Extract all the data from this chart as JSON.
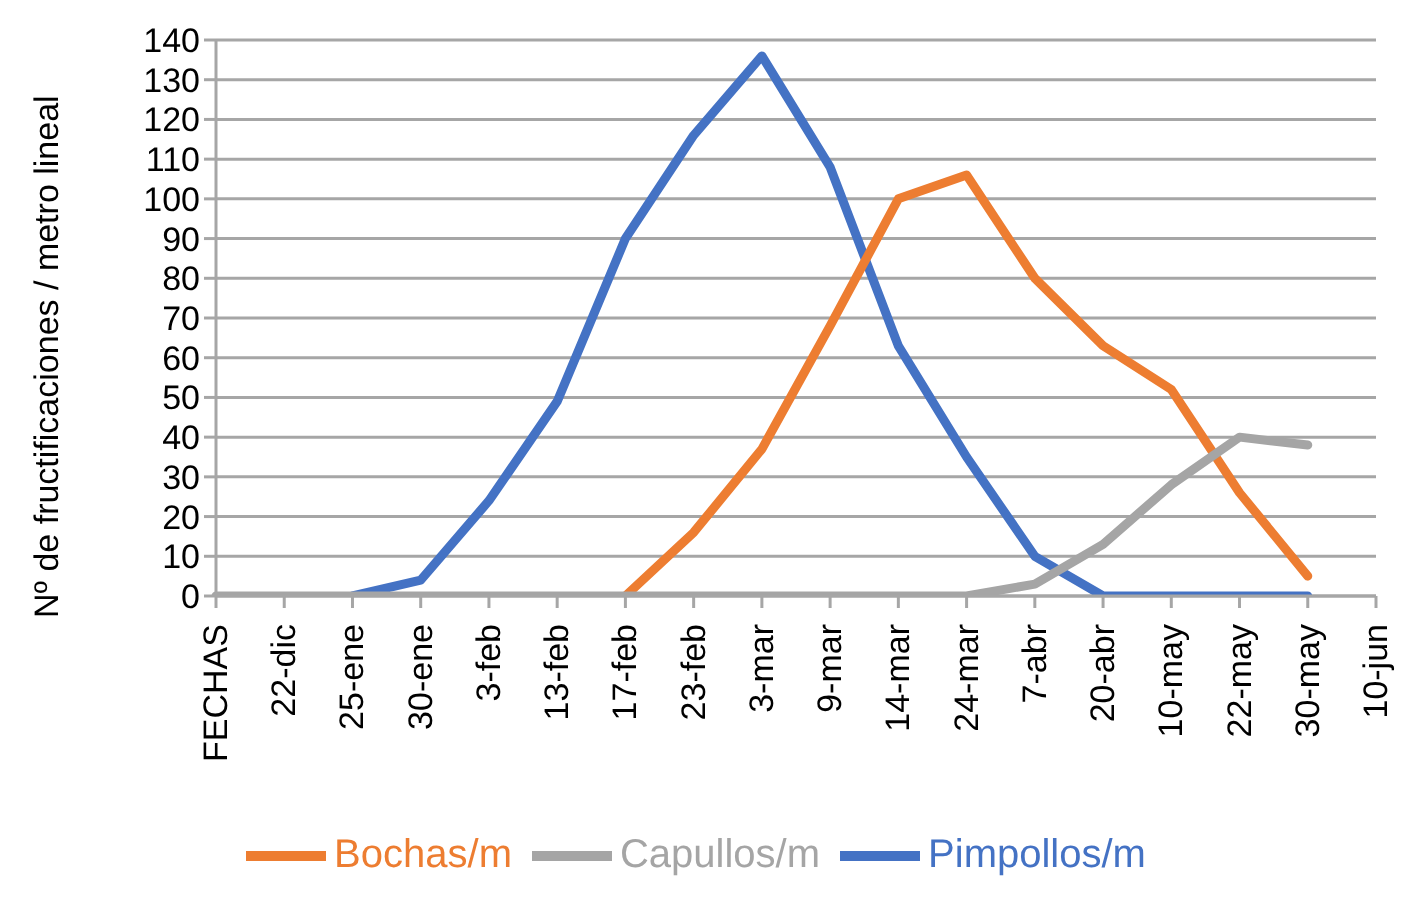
{
  "chart_data": {
    "type": "line",
    "ylabel": "Nº de fructificaciones / metro lineal",
    "categories": [
      "FECHAS",
      "22-dic",
      "25-ene",
      "30-ene",
      "3-feb",
      "13-feb",
      "17-feb",
      "23-feb",
      "3-mar",
      "9-mar",
      "14-mar",
      "24-mar",
      "7-abr",
      "20-abr",
      "10-may",
      "22-may",
      "30-may",
      "10-jun"
    ],
    "series": [
      {
        "name": "Pimpollos/m",
        "color": "#4472c4",
        "values": [
          null,
          null,
          0,
          4,
          24,
          49,
          90,
          116,
          136,
          108,
          63,
          35,
          10,
          0,
          0,
          0,
          0,
          null
        ]
      },
      {
        "name": "Bochas/m",
        "color": "#ed7d31",
        "values": [
          null,
          null,
          null,
          null,
          null,
          null,
          0,
          16,
          37,
          68,
          100,
          106,
          80,
          63,
          52,
          26,
          5,
          null
        ]
      },
      {
        "name": "Capullos/m",
        "color": "#a5a5a5",
        "values": [
          0,
          0,
          0,
          0,
          0,
          0,
          0,
          0,
          0,
          0,
          0,
          0,
          3,
          13,
          28,
          40,
          38,
          null
        ]
      }
    ],
    "ylim": [
      0,
      140
    ],
    "yticks": [
      0,
      10,
      20,
      30,
      40,
      50,
      60,
      70,
      80,
      90,
      100,
      110,
      120,
      130,
      140
    ],
    "grid": "y",
    "legend": "bottom",
    "marker": "none",
    "line_style": "solid"
  }
}
